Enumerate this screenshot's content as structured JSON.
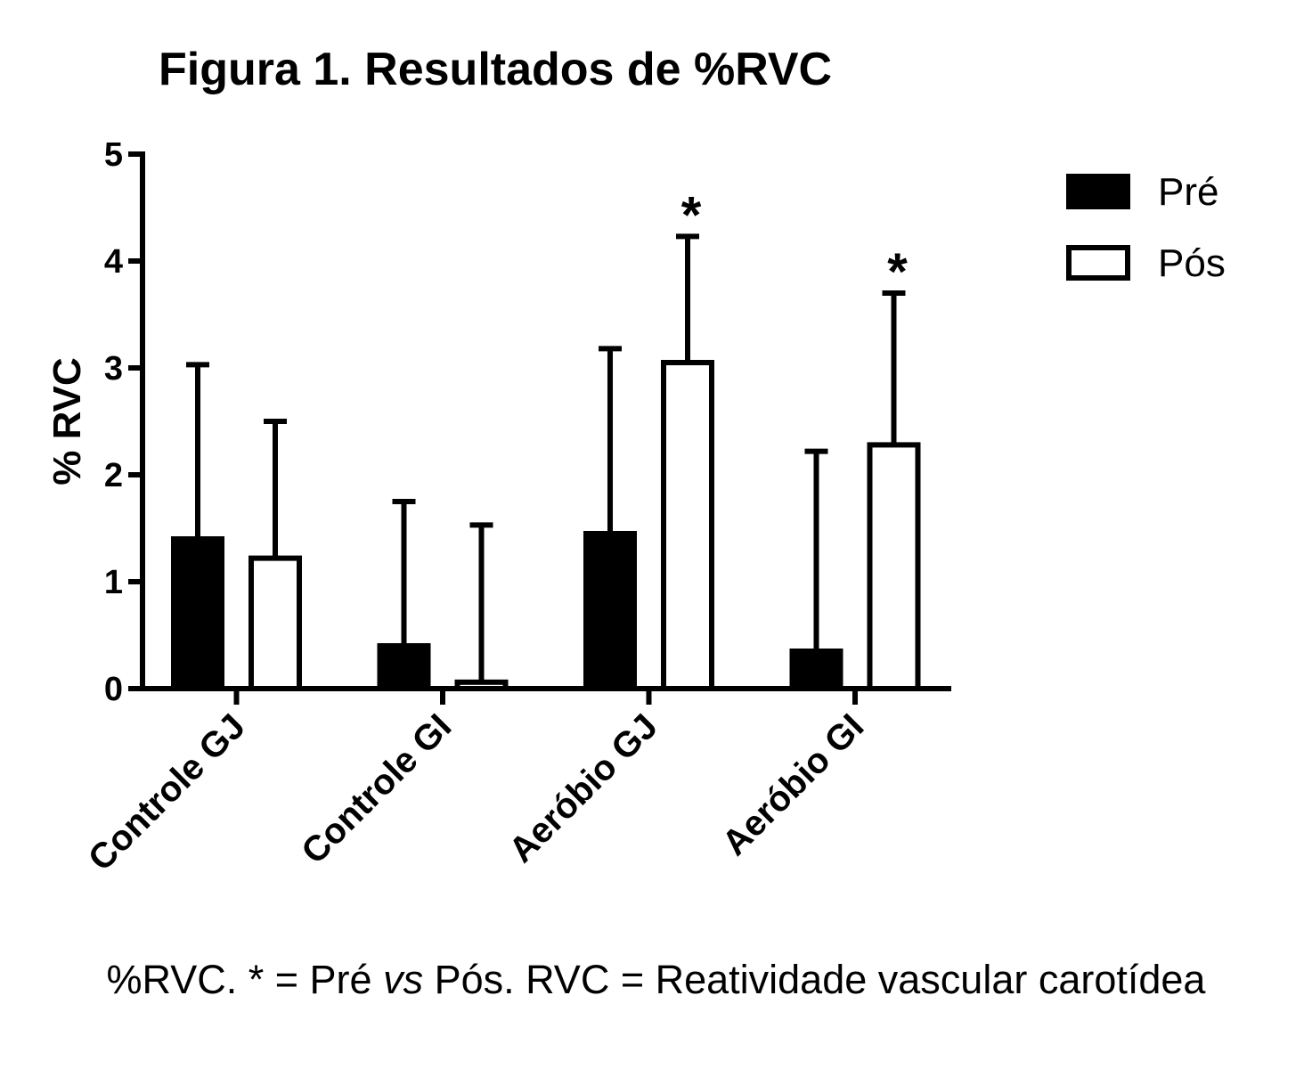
{
  "chart_data": {
    "type": "bar",
    "title": "Figura 1. Resultados de %RVC",
    "xlabel": "",
    "ylabel": "% RVC",
    "ylim": [
      0,
      5
    ],
    "yticks": [
      "0",
      "1",
      "2",
      "3",
      "4",
      "5"
    ],
    "categories": [
      "Controle GJ",
      "Controle GI",
      "Aeróbio GJ",
      "Aeróbio GI"
    ],
    "series": [
      {
        "name": "Pré",
        "fill": "#000000",
        "values": [
          1.4,
          0.4,
          1.45,
          0.35
        ],
        "error_upper": [
          3.03,
          1.75,
          3.18,
          2.22
        ]
      },
      {
        "name": "Pós",
        "fill": "#ffffff",
        "values": [
          1.22,
          0.06,
          3.05,
          2.28
        ],
        "error_upper": [
          2.5,
          1.53,
          4.23,
          3.7
        ]
      }
    ],
    "significance": [
      {
        "category": "Aeróbio GJ",
        "series": "Pós",
        "mark": "*"
      },
      {
        "category": "Aeróbio GI",
        "series": "Pós",
        "mark": "*"
      }
    ],
    "legend_position": "top-right",
    "grid": false
  },
  "caption": {
    "part1": "%RVC. * = Pré ",
    "italic": "vs",
    "part2": " Pós. RVC = Reatividade vascular carotídea"
  }
}
